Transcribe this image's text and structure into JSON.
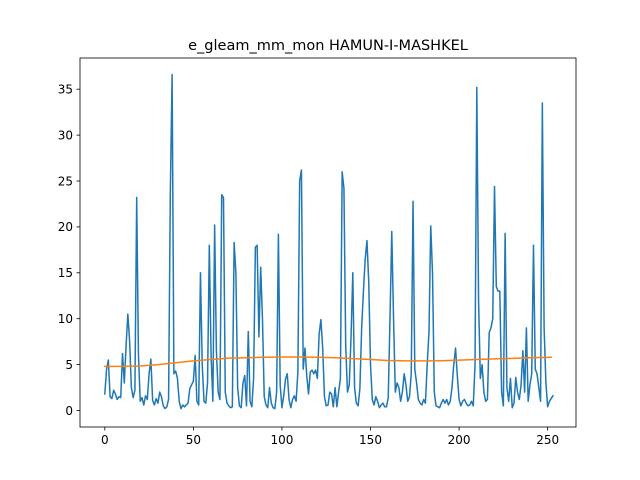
{
  "chart_data": {
    "type": "line",
    "title": "e_gleam_mm_mon HAMUN-I-MASHKEL",
    "xlabel": "",
    "ylabel": "",
    "xlim": [
      -14,
      266
    ],
    "ylim": [
      -1.8,
      38.4
    ],
    "x_ticks": [
      0,
      50,
      100,
      150,
      200,
      250
    ],
    "y_ticks": [
      0,
      5,
      10,
      15,
      20,
      25,
      30,
      35
    ],
    "grid": false,
    "legend": "none",
    "colors": {
      "series_1": "#1f77b4",
      "series_2": "#ff7f0e"
    },
    "series": [
      {
        "key": "series_1",
        "values": [
          1.8,
          4.5,
          5.5,
          1.5,
          1.3,
          2.2,
          1.8,
          1.2,
          1.5,
          1.4,
          6.2,
          3.0,
          7.0,
          10.5,
          7.6,
          2.5,
          1.4,
          2.2,
          23.2,
          6.0,
          1.0,
          1.4,
          0.6,
          1.6,
          1.2,
          4.0,
          5.6,
          1.1,
          0.6,
          1.3,
          0.8,
          2.0,
          1.5,
          0.5,
          0.2,
          0.4,
          1.2,
          23.8,
          36.6,
          4.0,
          4.3,
          3.5,
          1.0,
          0.2,
          0.6,
          0.4,
          0.6,
          0.8,
          2.4,
          2.8,
          3.2,
          6.0,
          1.0,
          0.6,
          15.0,
          5.0,
          1.0,
          0.8,
          3.0,
          18.0,
          6.0,
          1.0,
          20.2,
          6.5,
          2.0,
          1.2,
          23.5,
          23.2,
          2.0,
          0.8,
          0.5,
          0.3,
          0.4,
          18.3,
          15.0,
          2.5,
          0.5,
          0.3,
          3.0,
          3.8,
          0.5,
          8.6,
          1.0,
          0.4,
          3.5,
          17.8,
          18.0,
          8.0,
          15.6,
          10.0,
          1.5,
          0.6,
          0.3,
          2.5,
          0.8,
          0.3,
          0.2,
          2.0,
          19.2,
          2.8,
          0.3,
          1.6,
          3.4,
          4.0,
          1.2,
          0.3,
          1.2,
          1.6,
          1.0,
          4.2,
          25.0,
          26.2,
          4.5,
          6.8,
          3.8,
          1.8,
          4.2,
          4.4,
          4.0,
          4.4,
          3.5,
          8.3,
          9.9,
          6.8,
          1.5,
          0.5,
          0.6,
          2.0,
          1.8,
          0.4,
          2.5,
          0.4,
          2.0,
          3.5,
          26.0,
          24.2,
          7.0,
          2.0,
          2.8,
          8.0,
          15.0,
          2.5,
          0.8,
          0.5,
          2.4,
          9.0,
          13.0,
          16.5,
          18.5,
          14.0,
          5.0,
          1.2,
          0.6,
          1.5,
          1.0,
          0.3,
          0.6,
          0.8,
          0.4,
          0.4,
          1.4,
          10.0,
          19.5,
          10.0,
          2.0,
          3.0,
          2.5,
          1.0,
          2.0,
          4.0,
          2.8,
          1.0,
          1.5,
          4.0,
          22.8,
          4.5,
          3.0,
          1.2,
          0.8,
          0.6,
          1.2,
          0.8,
          5.0,
          8.5,
          20.1,
          15.0,
          2.0,
          0.5,
          0.4,
          0.3,
          0.8,
          1.2,
          0.8,
          1.2,
          0.6,
          1.0,
          2.5,
          5.0,
          6.8,
          3.8,
          1.2,
          0.5,
          1.0,
          1.2,
          0.8,
          0.5,
          0.6,
          1.0,
          0.5,
          5.0,
          35.2,
          12.0,
          3.5,
          5.0,
          2.0,
          1.0,
          1.2,
          8.5,
          9.0,
          10.0,
          24.4,
          13.5,
          13.0,
          13.0,
          2.0,
          0.5,
          19.3,
          2.5,
          1.0,
          3.5,
          0.3,
          0.8,
          3.6,
          2.0,
          1.2,
          2.8,
          6.5,
          2.0,
          9.0,
          1.0,
          2.8,
          4.0,
          18.0,
          4.5,
          4.0,
          2.5,
          1.0,
          33.5,
          9.0,
          3.0,
          0.4,
          1.0,
          1.3,
          1.6
        ]
      },
      {
        "key": "series_2",
        "x": [
          0,
          10,
          20,
          30,
          40,
          50,
          60,
          70,
          80,
          90,
          100,
          110,
          120,
          130,
          140,
          150,
          160,
          170,
          180,
          190,
          200,
          210,
          220,
          230,
          240,
          250,
          252
        ],
        "values": [
          4.8,
          4.8,
          4.85,
          5.0,
          5.2,
          5.4,
          5.55,
          5.7,
          5.75,
          5.8,
          5.82,
          5.82,
          5.8,
          5.75,
          5.65,
          5.55,
          5.45,
          5.4,
          5.4,
          5.42,
          5.48,
          5.55,
          5.62,
          5.68,
          5.75,
          5.78,
          5.8
        ]
      }
    ]
  }
}
